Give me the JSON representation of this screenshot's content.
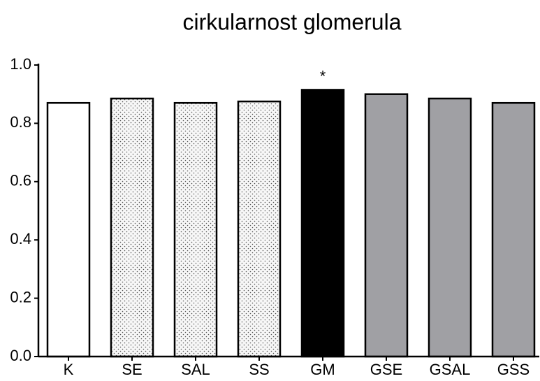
{
  "chart_data": {
    "type": "bar",
    "title": "cirkularnost glomerula",
    "categories": [
      "K",
      "SE",
      "SAL",
      "SS",
      "GM",
      "GSE",
      "GSAL",
      "GSS"
    ],
    "values": [
      0.87,
      0.885,
      0.87,
      0.875,
      0.915,
      0.9,
      0.885,
      0.87
    ],
    "colors": [
      "#ffffff",
      "#f2f2f2",
      "#f2f2f2",
      "#f2f2f2",
      "#000000",
      "#a0a0a4",
      "#a0a0a4",
      "#a0a0a4"
    ],
    "patterns": [
      "none",
      "dots",
      "dots",
      "dots",
      "none",
      "none",
      "none",
      "none"
    ],
    "annotations": [
      {
        "text": "*",
        "category": "GM"
      }
    ],
    "ylim": [
      0,
      1
    ],
    "yticks": [
      {
        "value": 0,
        "label": "0.0"
      },
      0.2,
      0.4,
      0.6,
      0.8,
      {
        "value": 1,
        "label": "1.0"
      }
    ],
    "grid": false
  }
}
